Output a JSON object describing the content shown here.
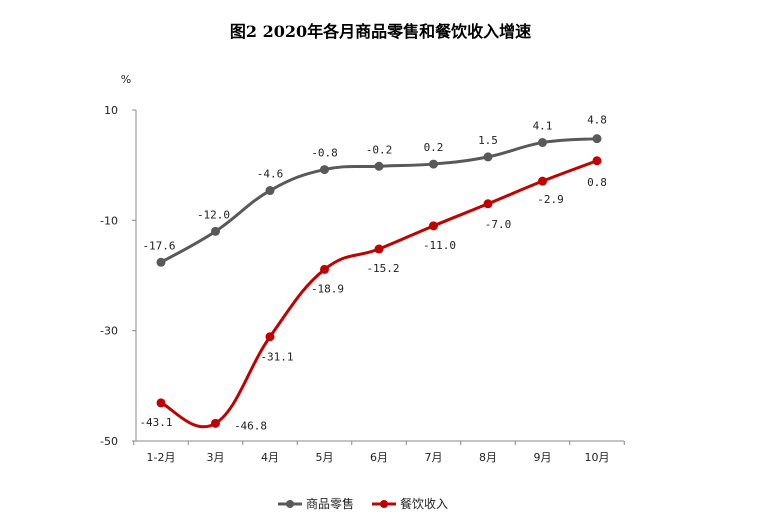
{
  "chart_data": {
    "type": "line",
    "title": "图2 2020年各月商品零售和餐饮收入增速",
    "ylabel": "%",
    "xlabel": "",
    "categories": [
      "1-2月",
      "3月",
      "4月",
      "5月",
      "6月",
      "7月",
      "8月",
      "9月",
      "10月"
    ],
    "ylim": [
      -50,
      10
    ],
    "yticks": [
      10,
      -10,
      -30,
      -50
    ],
    "legend_position": "bottom",
    "grid": false,
    "series": [
      {
        "name": "商品零售",
        "color": "#595959",
        "values": [
          -17.6,
          -12.0,
          -4.6,
          -0.8,
          -0.2,
          0.2,
          1.5,
          4.1,
          4.8
        ],
        "labels": [
          "-17.6",
          "-12.0",
          "-4.6",
          "-0.8",
          "-0.2",
          "0.2",
          "1.5",
          "4.1",
          "4.8"
        ]
      },
      {
        "name": "餐饮收入",
        "color": "#c00000",
        "values": [
          -43.1,
          -46.8,
          -31.1,
          -18.9,
          -15.2,
          -11.0,
          -7.0,
          -2.9,
          0.8
        ],
        "labels": [
          "-43.1",
          "-46.8",
          "-31.1",
          "-18.9",
          "-15.2",
          "-11.0",
          "-7.0",
          "-2.9",
          "0.8"
        ]
      }
    ]
  }
}
